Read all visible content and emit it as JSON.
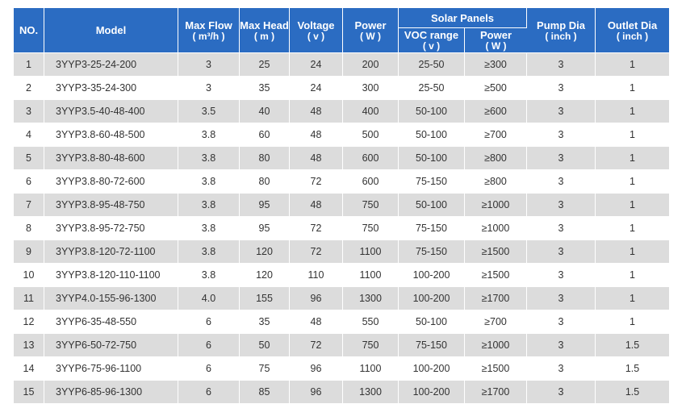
{
  "table": {
    "headers": {
      "no": "NO.",
      "model": "Model",
      "max_flow": {
        "label": "Max Flow",
        "unit": "( m³/h )"
      },
      "max_head": {
        "label": "Max Head",
        "unit": "( m )"
      },
      "voltage": {
        "label": "Voltage",
        "unit": "( v )"
      },
      "power": {
        "label": "Power",
        "unit": "( W )"
      },
      "solar_panels": "Solar Panels",
      "voc_range": {
        "label": "VOC range",
        "unit": "( v )"
      },
      "solar_power": {
        "label": "Power",
        "unit": "( W )"
      },
      "pump_dia": {
        "label": "Pump Dia",
        "unit": "( inch )"
      },
      "outlet_dia": {
        "label": "Outlet Dia",
        "unit": "( inch )"
      }
    },
    "rows": [
      {
        "no": "1",
        "model": "3YYP3-25-24-200",
        "flow": "3",
        "head": "25",
        "voltage": "24",
        "power": "200",
        "voc": "25-50",
        "spower": "≥300",
        "pump_dia": "3",
        "outlet_dia": "1"
      },
      {
        "no": "2",
        "model": "3YYP3-35-24-300",
        "flow": "3",
        "head": "35",
        "voltage": "24",
        "power": "300",
        "voc": "25-50",
        "spower": "≥500",
        "pump_dia": "3",
        "outlet_dia": "1"
      },
      {
        "no": "3",
        "model": "3YYP3.5-40-48-400",
        "flow": "3.5",
        "head": "40",
        "voltage": "48",
        "power": "400",
        "voc": "50-100",
        "spower": "≥600",
        "pump_dia": "3",
        "outlet_dia": "1"
      },
      {
        "no": "4",
        "model": "3YYP3.8-60-48-500",
        "flow": "3.8",
        "head": "60",
        "voltage": "48",
        "power": "500",
        "voc": "50-100",
        "spower": "≥700",
        "pump_dia": "3",
        "outlet_dia": "1"
      },
      {
        "no": "5",
        "model": "3YYP3.8-80-48-600",
        "flow": "3.8",
        "head": "80",
        "voltage": "48",
        "power": "600",
        "voc": "50-100",
        "spower": "≥800",
        "pump_dia": "3",
        "outlet_dia": "1"
      },
      {
        "no": "6",
        "model": "3YYP3.8-80-72-600",
        "flow": "3.8",
        "head": "80",
        "voltage": "72",
        "power": "600",
        "voc": "75-150",
        "spower": "≥800",
        "pump_dia": "3",
        "outlet_dia": "1"
      },
      {
        "no": "7",
        "model": "3YYP3.8-95-48-750",
        "flow": "3.8",
        "head": "95",
        "voltage": "48",
        "power": "750",
        "voc": "50-100",
        "spower": "≥1000",
        "pump_dia": "3",
        "outlet_dia": "1"
      },
      {
        "no": "8",
        "model": "3YYP3.8-95-72-750",
        "flow": "3.8",
        "head": "95",
        "voltage": "72",
        "power": "750",
        "voc": "75-150",
        "spower": "≥1000",
        "pump_dia": "3",
        "outlet_dia": "1"
      },
      {
        "no": "9",
        "model": "3YYP3.8-120-72-1100",
        "flow": "3.8",
        "head": "120",
        "voltage": "72",
        "power": "1100",
        "voc": "75-150",
        "spower": "≥1500",
        "pump_dia": "3",
        "outlet_dia": "1"
      },
      {
        "no": "10",
        "model": "3YYP3.8-120-110-1100",
        "flow": "3.8",
        "head": "120",
        "voltage": "110",
        "power": "1100",
        "voc": "100-200",
        "spower": "≥1500",
        "pump_dia": "3",
        "outlet_dia": "1"
      },
      {
        "no": "11",
        "model": "3YYP4.0-155-96-1300",
        "flow": "4.0",
        "head": "155",
        "voltage": "96",
        "power": "1300",
        "voc": "100-200",
        "spower": "≥1700",
        "pump_dia": "3",
        "outlet_dia": "1"
      },
      {
        "no": "12",
        "model": "3YYP6-35-48-550",
        "flow": "6",
        "head": "35",
        "voltage": "48",
        "power": "550",
        "voc": "50-100",
        "spower": "≥700",
        "pump_dia": "3",
        "outlet_dia": "1"
      },
      {
        "no": "13",
        "model": "3YYP6-50-72-750",
        "flow": "6",
        "head": "50",
        "voltage": "72",
        "power": "750",
        "voc": "75-150",
        "spower": "≥1000",
        "pump_dia": "3",
        "outlet_dia": "1.5"
      },
      {
        "no": "14",
        "model": "3YYP6-75-96-1100",
        "flow": "6",
        "head": "75",
        "voltage": "96",
        "power": "1100",
        "voc": "100-200",
        "spower": "≥1500",
        "pump_dia": "3",
        "outlet_dia": "1.5"
      },
      {
        "no": "15",
        "model": "3YYP6-85-96-1300",
        "flow": "6",
        "head": "85",
        "voltage": "96",
        "power": "1300",
        "voc": "100-200",
        "spower": "≥1700",
        "pump_dia": "3",
        "outlet_dia": "1.5"
      }
    ]
  },
  "colors": {
    "header_bg": "#2b6cc2",
    "header_text": "#ffffff",
    "row_alt_bg": "#dcdcdc",
    "row_bg": "#ffffff",
    "cell_text": "#333333"
  }
}
